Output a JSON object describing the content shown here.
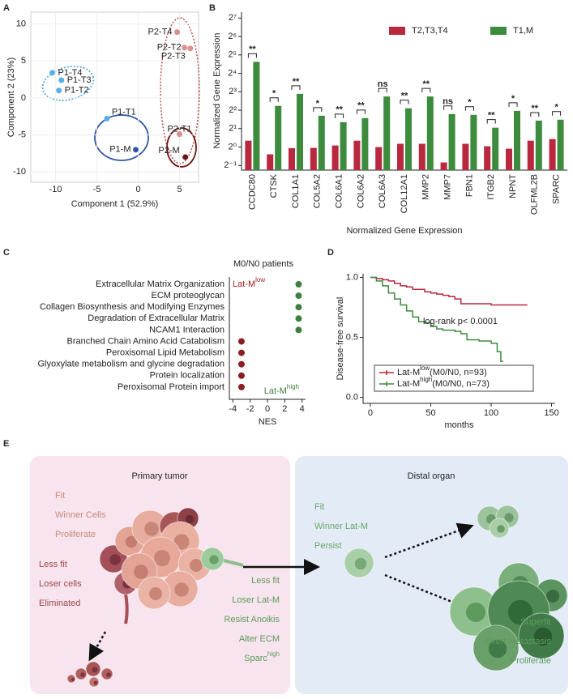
{
  "panel_labels": [
    "A",
    "B",
    "C",
    "D",
    "E"
  ],
  "chart_data": [
    {
      "type": "scatter",
      "x_label": "Component 1 (52.9%)",
      "y_label": "Component 2 (23%)",
      "point_labels": [
        "P1-T4",
        "P1-T3",
        "P1-T2",
        "P1-T1",
        "P1-M",
        "P2-T4",
        "P2-T2",
        "P2-T3",
        "P2-T1",
        "P2-M"
      ],
      "x": [
        -10.4,
        -9.3,
        -9.6,
        -3.8,
        -0.3,
        4.7,
        5.6,
        6.3,
        5.0,
        5.7
      ],
      "values": [
        3.4,
        2.4,
        1.0,
        -2.8,
        -7.0,
        8.9,
        6.8,
        6.7,
        -4.9,
        -8.0
      ],
      "colors": [
        "#5aaee8",
        "#5aaee8",
        "#5aaee8",
        "#5aaee8",
        "#2f55a8",
        "#d9908e",
        "#d9908e",
        "#d9908e",
        "#d9908e",
        "#6e1414"
      ],
      "xlim": [
        -13,
        7.3
      ],
      "ylim": [
        -11.4,
        11.6
      ],
      "xticks": [
        -10,
        -5,
        0,
        5
      ],
      "yticks": [
        -10,
        -5,
        0,
        5,
        10
      ],
      "grid": true
    },
    {
      "type": "bar",
      "y_label": "Normalized Gene Expression",
      "x_label": "Normalized Gene Expression",
      "categories": [
        "CCDC80",
        "CTSK",
        "COL1A1",
        "COL5A2",
        "COL6A1",
        "COL6A2",
        "COL6A3",
        "COL12A1",
        "MMP2",
        "MMP7",
        "FBN1",
        "ITGB2",
        "NPNT",
        "OLFML2B",
        "SPARC"
      ],
      "series": [
        {
          "name": "T2,T3,T4",
          "color": "#b8283e",
          "values": [
            1.27,
            0.76,
            0.96,
            0.97,
            1.06,
            1.27,
            1.0,
            1.13,
            1.13,
            0.56,
            1.13,
            1.03,
            0.94,
            1.27,
            1.35
          ]
        },
        {
          "name": "T1,M",
          "color": "#3d8b3d",
          "values": [
            24.7,
            4.7,
            7.4,
            3.25,
            2.55,
            2.97,
            6.7,
            4.3,
            6.7,
            3.46,
            3.36,
            2.07,
            3.9,
            2.7,
            2.8
          ]
        }
      ],
      "significance": [
        "**",
        "*",
        "**",
        "*",
        "**",
        "**",
        "ns",
        "**",
        "**",
        "ns",
        "*",
        "**",
        "*",
        "**",
        "*"
      ],
      "log_scale": true,
      "ylim": [
        0.42,
        160
      ],
      "yticks": [
        {
          "value": 0.5,
          "label": "2⁻¹"
        },
        {
          "value": 1,
          "label": "2⁰"
        },
        {
          "value": 2,
          "label": "2¹"
        },
        {
          "value": 4,
          "label": "2²"
        },
        {
          "value": 8,
          "label": "2³"
        },
        {
          "value": 16,
          "label": "2⁴"
        },
        {
          "value": 32,
          "label": "2⁵"
        },
        {
          "value": 64,
          "label": "2⁶"
        },
        {
          "value": 128,
          "label": "2⁷"
        }
      ],
      "legend": "top-right"
    },
    {
      "type": "dot",
      "title": "M0/N0 patients",
      "x_label": "NES",
      "categories": [
        "Extracellular Matrix Organization",
        "ECM proteoglycan",
        "Collagen Biosynthesis and Modifying Enzymes",
        "Degradation of Extracellular Matrix",
        "NCAM1 Interaction",
        "Branched Chain Amino Acid Catabolism",
        "Peroxisomal Lipid Metabolism",
        "Glyoxylate metabolism and glycine degradation",
        "Protein localization",
        "Peroxisomal Protein import"
      ],
      "values": [
        3.6,
        3.6,
        3.6,
        3.6,
        3.6,
        -3.0,
        -3.0,
        -3.0,
        -3.0,
        -3.0
      ],
      "colors": [
        "#3f7f3f",
        "#3f7f3f",
        "#3f7f3f",
        "#3f7f3f",
        "#3f7f3f",
        "#8b1f1f",
        "#8b1f1f",
        "#8b1f1f",
        "#8b1f1f",
        "#8b1f1f"
      ],
      "xlim": [
        -4.4,
        4.4
      ],
      "xticks": [
        -4,
        -2,
        0,
        2,
        4
      ],
      "annotations": [
        {
          "text": "Lat-M",
          "sup": "low",
          "color": "#9b1b1b"
        },
        {
          "text": "Lat-M",
          "sup": "high",
          "color": "#3f7f3f"
        }
      ]
    },
    {
      "type": "line",
      "step": true,
      "y_label": "Disease-free survival",
      "x_label": "months",
      "annotation": "log-rank p< 0.0001",
      "series": [
        {
          "name": "Lat-M",
          "name_sup": "low",
          "name_suffix": "(M0/N0, n=93)",
          "color": "#b8283e",
          "x": [
            0,
            5,
            10,
            15,
            20,
            25,
            30,
            35,
            40,
            45,
            50,
            55,
            60,
            65,
            70,
            75,
            80,
            90,
            100,
            110,
            120,
            130
          ],
          "values": [
            1,
            0.99,
            0.98,
            0.97,
            0.95,
            0.93,
            0.92,
            0.9,
            0.9,
            0.88,
            0.87,
            0.86,
            0.85,
            0.84,
            0.82,
            0.78,
            0.78,
            0.78,
            0.77,
            0.77,
            0.77,
            0.77
          ]
        },
        {
          "name": "Lat-M",
          "name_sup": "high",
          "name_suffix": "(M0/N0, n=73)",
          "color": "#3d8b3d",
          "x": [
            0,
            5,
            10,
            15,
            20,
            25,
            30,
            35,
            40,
            45,
            50,
            55,
            60,
            70,
            75,
            80,
            90,
            100,
            105,
            108,
            110
          ],
          "values": [
            1,
            0.97,
            0.93,
            0.87,
            0.82,
            0.77,
            0.72,
            0.67,
            0.63,
            0.62,
            0.59,
            0.57,
            0.56,
            0.55,
            0.53,
            0.48,
            0.47,
            0.45,
            0.38,
            0.3,
            0.3
          ]
        }
      ],
      "xlim": [
        -6,
        153
      ],
      "ylim": [
        -0.05,
        1.03
      ],
      "xticks": [
        0,
        50,
        100,
        150
      ],
      "yticks": [
        {
          "value": 0,
          "label": "0.0"
        },
        {
          "value": 0.5,
          "label": "0.5"
        },
        {
          "value": 1,
          "label": "1.0"
        }
      ]
    }
  ],
  "diagram": {
    "primary": {
      "title": "Primary tumor",
      "winner": [
        "Fit",
        "Winner Cells",
        "Proliferate"
      ],
      "loser": [
        "Less fit",
        "Loser cells",
        "Eliminated"
      ],
      "lat_m": [
        "Less fit",
        "Loser Lat-M",
        "Resist Anoikis",
        "Alter ECM",
        {
          "text": "Sparc",
          "sup": "high"
        }
      ]
    },
    "distal": {
      "title": "Distal organ",
      "persist": [
        "Fit",
        "Winner Lat-M",
        "Persist"
      ],
      "metastasis": [
        "Superfit",
        "Overt Metastasis",
        "Proliferate"
      ]
    }
  }
}
